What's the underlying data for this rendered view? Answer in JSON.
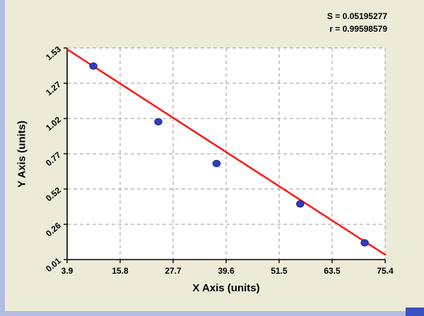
{
  "annotations": {
    "s_label": "S = 0.05195277",
    "r_label": "r = 0.99598579"
  },
  "chart_data": {
    "type": "scatter",
    "title": "",
    "xlabel": "X Axis (units)",
    "ylabel": "Y Axis (units)",
    "x_tick_labels": [
      "3.9",
      "15.8",
      "27.7",
      "39.6",
      "51.5",
      "63.5",
      "75.4"
    ],
    "y_tick_labels": [
      "0.01",
      "0.26",
      "0.52",
      "0.77",
      "1.02",
      "1.27",
      "1.53"
    ],
    "xlim": [
      3.9,
      75.4
    ],
    "ylim": [
      0.01,
      1.53
    ],
    "grid": "dashed",
    "legend": "none",
    "points": [
      {
        "x": 9.8,
        "y": 1.4
      },
      {
        "x": 24.4,
        "y": 1.0
      },
      {
        "x": 37.5,
        "y": 0.7
      },
      {
        "x": 56.3,
        "y": 0.41
      },
      {
        "x": 70.8,
        "y": 0.13
      }
    ],
    "fit_line": {
      "x1": 3.9,
      "y1": 1.52,
      "x2": 75.4,
      "y2": 0.045
    },
    "stats": {
      "S": 0.05195277,
      "r": 0.99598579
    },
    "colors": {
      "point_fill": "#2e3fbe",
      "point_stroke": "#16247f",
      "fit_line": "#ff1414",
      "grid": "#9a9a9a",
      "axis": "#000000",
      "background": "#edead8",
      "plot_background": "#ffffff",
      "strip": "#b2bbe2",
      "corner_square": "#3a50c0"
    }
  }
}
